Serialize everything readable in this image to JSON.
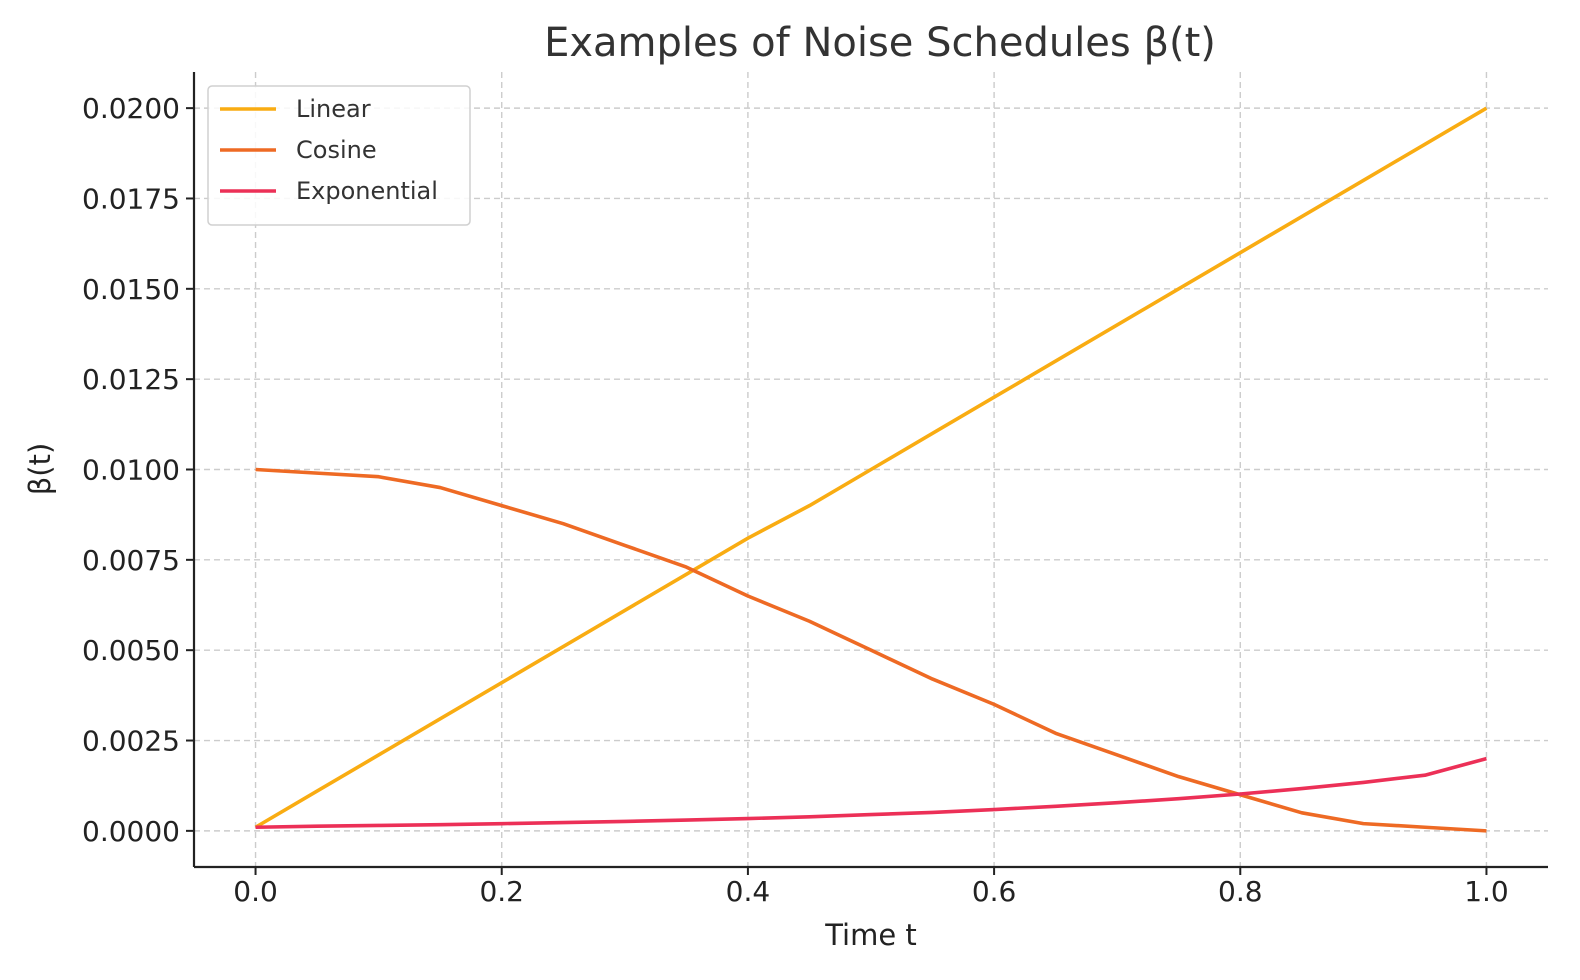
{
  "chart_data": {
    "type": "line",
    "title": "Examples of Noise Schedules β(t)",
    "xlabel": "Time t",
    "ylabel": "β(t)",
    "xlim": [
      -0.05,
      1.05
    ],
    "ylim": [
      -0.001,
      0.021
    ],
    "xticks": [
      0.0,
      0.2,
      0.4,
      0.6,
      0.8,
      1.0
    ],
    "xtick_labels": [
      "0.0",
      "0.2",
      "0.4",
      "0.6",
      "0.8",
      "1.0"
    ],
    "yticks": [
      0.0,
      0.0025,
      0.005,
      0.0075,
      0.01,
      0.0125,
      0.015,
      0.0175,
      0.02
    ],
    "ytick_labels": [
      "0.0000",
      "0.0025",
      "0.0050",
      "0.0075",
      "0.0100",
      "0.0125",
      "0.0150",
      "0.0175",
      "0.0200"
    ],
    "grid": true,
    "legend_position": "top-left",
    "x": [
      0.0,
      0.05,
      0.1,
      0.15,
      0.2,
      0.25,
      0.3,
      0.35,
      0.4,
      0.45,
      0.5,
      0.55,
      0.6,
      0.65,
      0.7,
      0.75,
      0.8,
      0.85,
      0.9,
      0.95,
      1.0
    ],
    "series": [
      {
        "name": "Linear",
        "color": "#F9AC12",
        "values": [
          0.0001,
          0.0011,
          0.0021,
          0.0031,
          0.0041,
          0.0051,
          0.0061,
          0.0071,
          0.0081,
          0.009,
          0.01,
          0.011,
          0.012,
          0.013,
          0.014,
          0.015,
          0.016,
          0.017,
          0.018,
          0.019,
          0.02
        ]
      },
      {
        "name": "Cosine",
        "color": "#EE6A24",
        "values": [
          0.01,
          0.0099,
          0.0098,
          0.0095,
          0.009,
          0.0085,
          0.0079,
          0.0073,
          0.0065,
          0.0058,
          0.005,
          0.0042,
          0.0035,
          0.0027,
          0.0021,
          0.0015,
          0.001,
          0.0005,
          0.0002,
          0.0001,
          0.0
        ]
      },
      {
        "name": "Exponential",
        "color": "#EC3057",
        "values": [
          0.0001,
          0.00013,
          0.00015,
          0.00017,
          0.0002,
          0.00023,
          0.00026,
          0.0003,
          0.00034,
          0.00039,
          0.00045,
          0.00051,
          0.00059,
          0.00068,
          0.00078,
          0.00089,
          0.00102,
          0.00117,
          0.00134,
          0.00154,
          0.002
        ]
      }
    ]
  }
}
